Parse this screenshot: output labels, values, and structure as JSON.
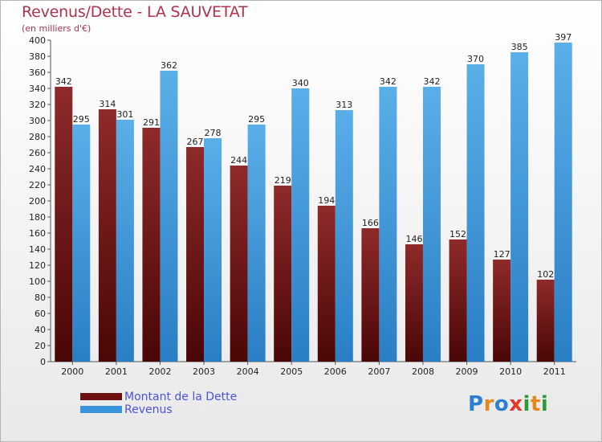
{
  "header": {
    "title": "Revenus/Dette - LA SAUVETAT",
    "subtitle": "(en milliers d'€)"
  },
  "colors": {
    "dette": "#7d1a1a",
    "revenus": "#3a96dc",
    "title": "#b0324a",
    "legend_text": "#4b53d6"
  },
  "legend": {
    "items": [
      {
        "label": "Montant de la Dette",
        "color": "#6b0f0f"
      },
      {
        "label": "Revenus",
        "color": "#3a96dc"
      }
    ]
  },
  "logo": {
    "text": "Proxiti",
    "letter_colors": [
      "#2f7fd0",
      "#e08a1e",
      "#2f7fd0",
      "#e03a2a",
      "#2f9a3a",
      "#e08a1e",
      "#2f9a3a"
    ]
  },
  "chart_data": {
    "type": "bar",
    "title": "Revenus/Dette - LA SAUVETAT",
    "subtitle": "(en milliers d'€)",
    "categories": [
      "2000",
      "2001",
      "2002",
      "2003",
      "2004",
      "2005",
      "2006",
      "2007",
      "2008",
      "2009",
      "2010",
      "2011"
    ],
    "series": [
      {
        "name": "Montant de la Dette",
        "values": [
          342,
          314,
          291,
          267,
          244,
          219,
          194,
          166,
          146,
          152,
          127,
          102
        ]
      },
      {
        "name": "Revenus",
        "values": [
          295,
          301,
          362,
          278,
          295,
          340,
          313,
          342,
          342,
          370,
          385,
          397
        ]
      }
    ],
    "ylim": [
      0,
      400
    ],
    "ytick_step": 20,
    "grid": false,
    "legend_position": "bottom-left"
  }
}
